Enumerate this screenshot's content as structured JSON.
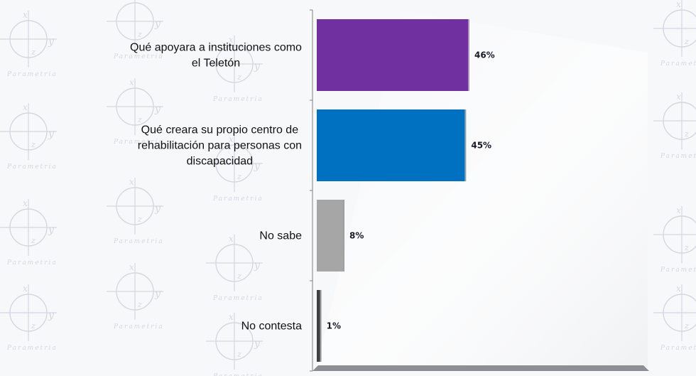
{
  "chart_data": {
    "type": "bar",
    "orientation": "horizontal",
    "categories": [
      "Qué apoyara a instituciones como el Teletón",
      "Qué creara su propio centro de rehabilitación para personas con discapacidad",
      "No sabe",
      "No contesta"
    ],
    "values": [
      46,
      45,
      8,
      1
    ],
    "value_labels": [
      "46%",
      "45%",
      "8%",
      "1%"
    ],
    "colors": [
      "#7030a0",
      "#0070c0",
      "#a6a6a6",
      "#404040"
    ],
    "xlim": [
      0,
      100
    ],
    "grid": false,
    "legend": "none",
    "title": ""
  },
  "background": {
    "watermark_text": "Parametria",
    "watermark_glyphs": [
      "x",
      "y",
      "z"
    ],
    "watermark_color": "#c8ced8"
  }
}
